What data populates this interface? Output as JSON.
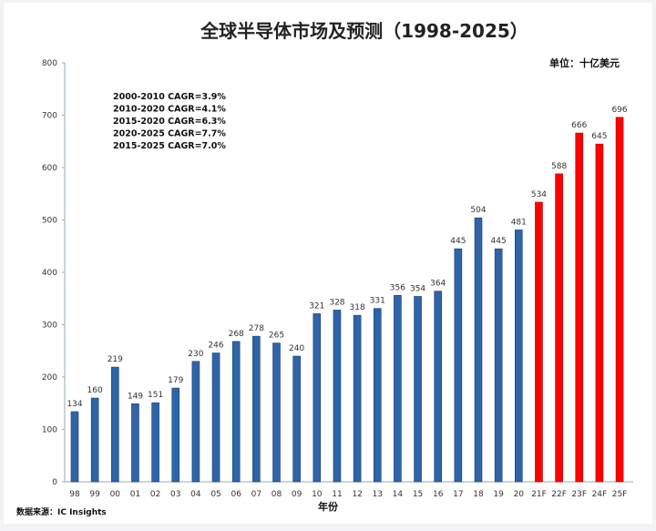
{
  "chart_data": {
    "type": "bar",
    "title": "全球半导体市场及预测（1998-2025）",
    "unit": "单位：十亿美元",
    "xlabel": "年份",
    "ylabel": "",
    "ylim": [
      0,
      800
    ],
    "yticks": [
      0,
      100,
      200,
      300,
      400,
      500,
      600,
      700,
      800
    ],
    "categories": [
      "98",
      "99",
      "00",
      "01",
      "02",
      "03",
      "04",
      "05",
      "06",
      "07",
      "08",
      "09",
      "10",
      "11",
      "12",
      "13",
      "14",
      "15",
      "16",
      "17",
      "18",
      "19",
      "20",
      "21F",
      "22F",
      "23F",
      "24F",
      "25F"
    ],
    "values": [
      134,
      160,
      219,
      149,
      151,
      179,
      230,
      246,
      268,
      278,
      265,
      240,
      321,
      328,
      318,
      331,
      356,
      354,
      364,
      445,
      504,
      445,
      481,
      534,
      588,
      666,
      645,
      696
    ],
    "colors": {
      "actual": "#2e64a8",
      "forecast": "#ff0000"
    },
    "forecast_from_index": 23,
    "annotations": [
      "2000-2010  CAGR=3.9%",
      "2010-2020  CAGR=4.1%",
      "2015-2020  CAGR=6.3%",
      "2020-2025  CAGR=7.7%",
      "2015-2025  CAGR=7.0%"
    ],
    "source": "数据来源：IC Insights",
    "grid": false,
    "legend": "none"
  }
}
